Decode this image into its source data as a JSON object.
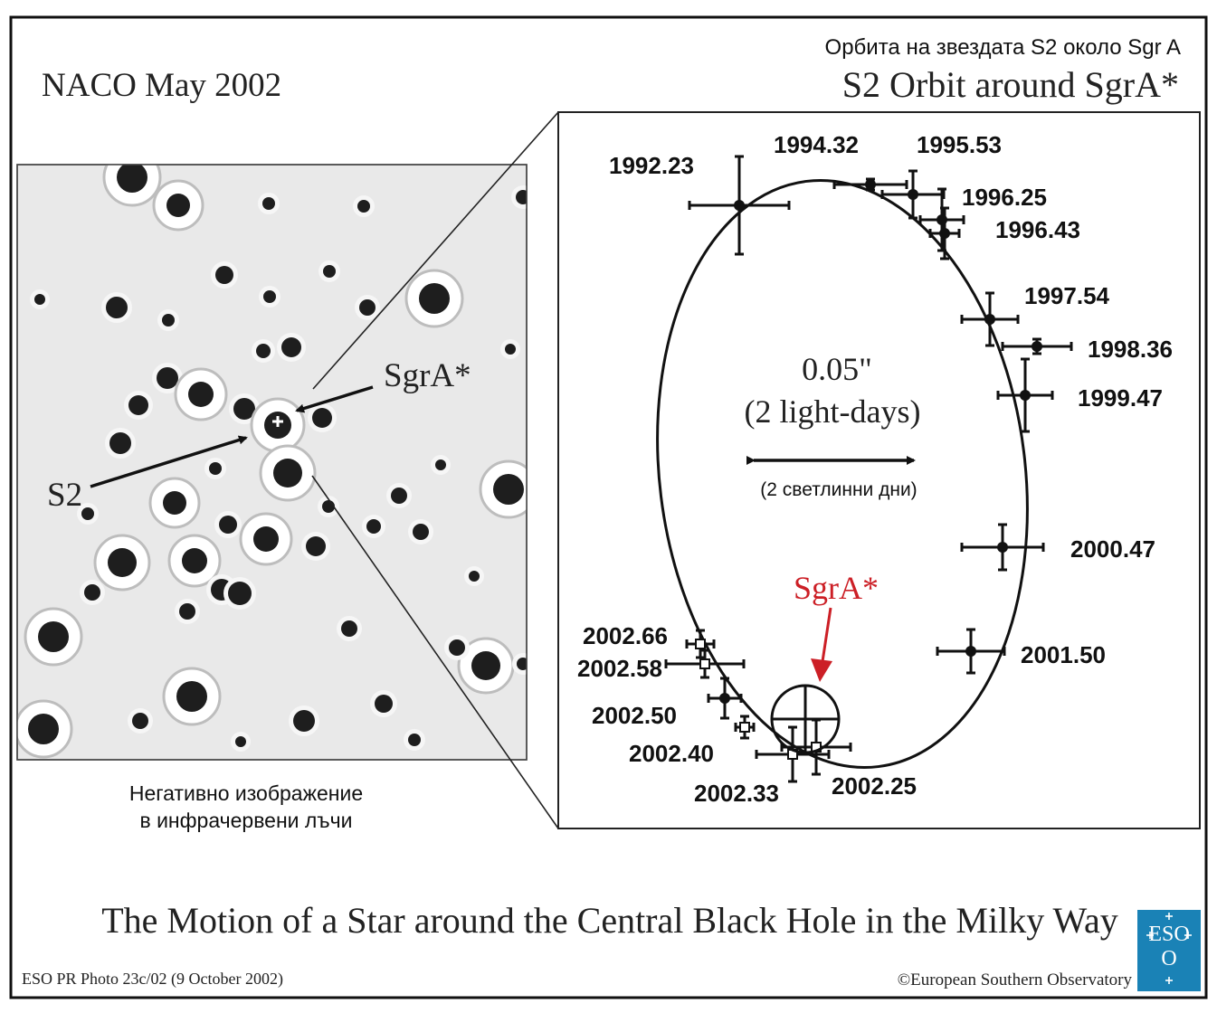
{
  "header": {
    "left_title": "NACO May 2002",
    "right_title_bg": "Орбита на звездата S2 около Sgr A",
    "right_title_en": "S2 Orbit around SgrA*"
  },
  "image_panel": {
    "sgra_label": "SgrA*",
    "s2_label": "S2",
    "caption_line1": "Негативно изображение",
    "caption_line2": "в инфрачервени лъчи"
  },
  "orbit_panel": {
    "scale_value": "0.05\"",
    "scale_en": "(2 light-days)",
    "scale_bg": "(2 светлинни дни)",
    "sgra_label": "SgrA*",
    "epochs": [
      {
        "label": "1992.23",
        "style": "filled"
      },
      {
        "label": "1994.32",
        "style": "filled"
      },
      {
        "label": "1995.53",
        "style": "filled"
      },
      {
        "label": "1996.25",
        "style": "filled"
      },
      {
        "label": "1996.43",
        "style": "filled"
      },
      {
        "label": "1997.54",
        "style": "filled"
      },
      {
        "label": "1998.36",
        "style": "filled"
      },
      {
        "label": "1999.47",
        "style": "filled"
      },
      {
        "label": "2000.47",
        "style": "filled"
      },
      {
        "label": "2001.50",
        "style": "filled"
      },
      {
        "label": "2002.25",
        "style": "open"
      },
      {
        "label": "2002.33",
        "style": "open"
      },
      {
        "label": "2002.40",
        "style": "open"
      },
      {
        "label": "2002.50",
        "style": "filled"
      },
      {
        "label": "2002.58",
        "style": "open"
      },
      {
        "label": "2002.66",
        "style": "open"
      }
    ]
  },
  "footer": {
    "main_title": "The Motion of a Star around the Central Black Hole in the Milky Way",
    "photo_id": "ESO PR Photo 23c/02 (9 October 2002)",
    "copyright": "©European Southern Observatory",
    "logo_text": "ESO"
  },
  "colors": {
    "accent_red": "#cc1f26",
    "logo_blue": "#1a82b6",
    "ink": "#111111"
  }
}
